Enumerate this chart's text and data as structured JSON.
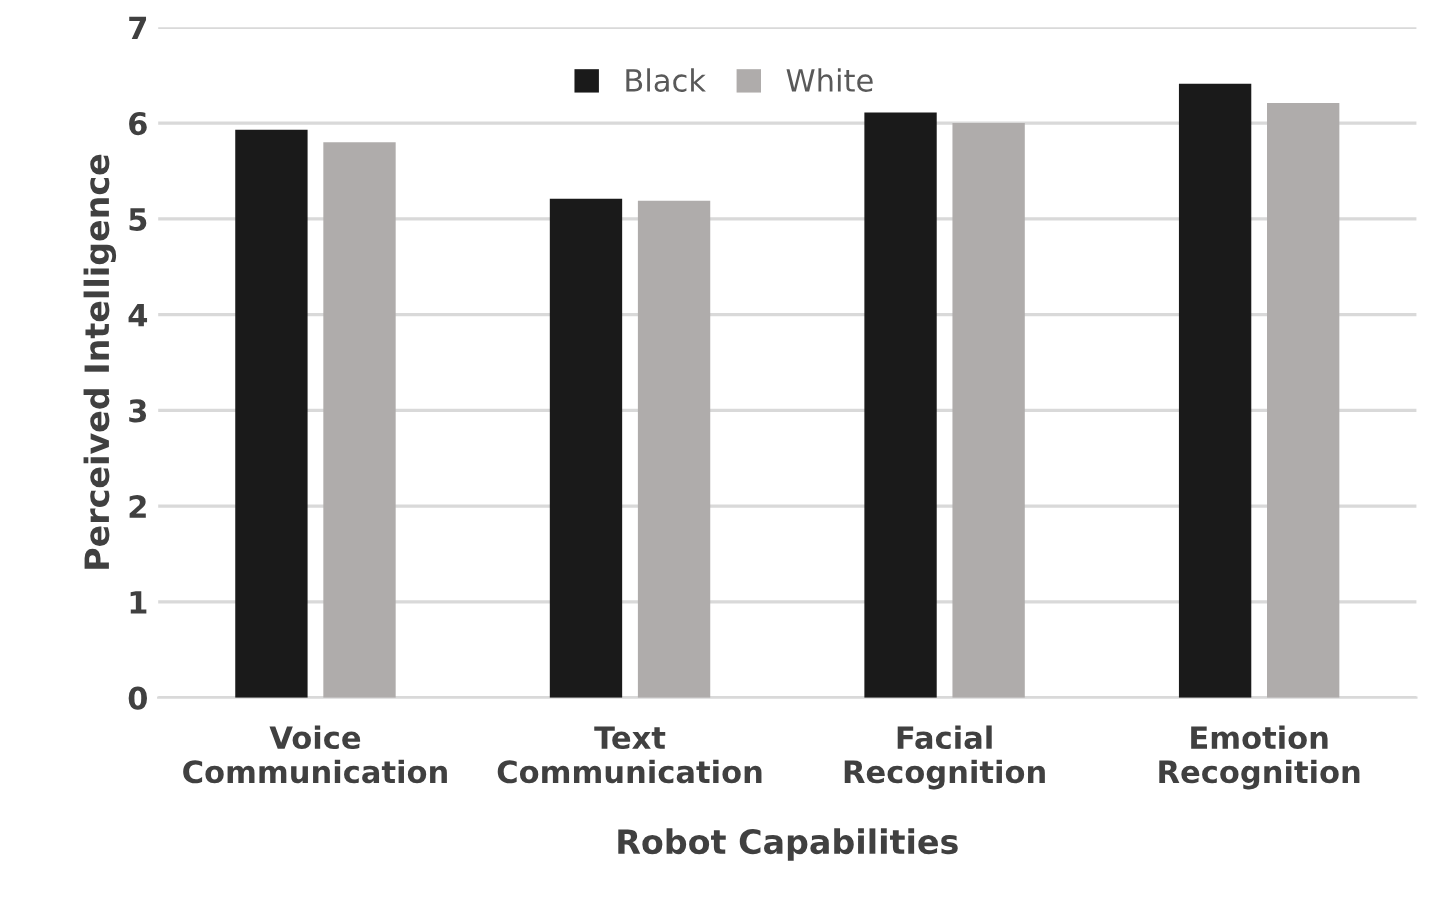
{
  "chart_data": {
    "type": "bar",
    "xlabel": "Robot Capabilities",
    "ylabel": "Perceived Intelligence",
    "categories": [
      "Voice\nCommunication",
      "Text\nCommunication",
      "Facial\nRecognition",
      "Emotion\nRecognition"
    ],
    "series": [
      {
        "name": "Black",
        "color": "#1a1a1a",
        "values": [
          5.93,
          5.21,
          6.11,
          6.41
        ]
      },
      {
        "name": "White",
        "color": "#afacab",
        "values": [
          5.8,
          5.19,
          6.0,
          6.21
        ]
      }
    ],
    "ylim": [
      0,
      7
    ],
    "yticks": [
      0,
      1,
      2,
      3,
      4,
      5,
      6,
      7
    ],
    "grid": "y",
    "legend": "top"
  }
}
